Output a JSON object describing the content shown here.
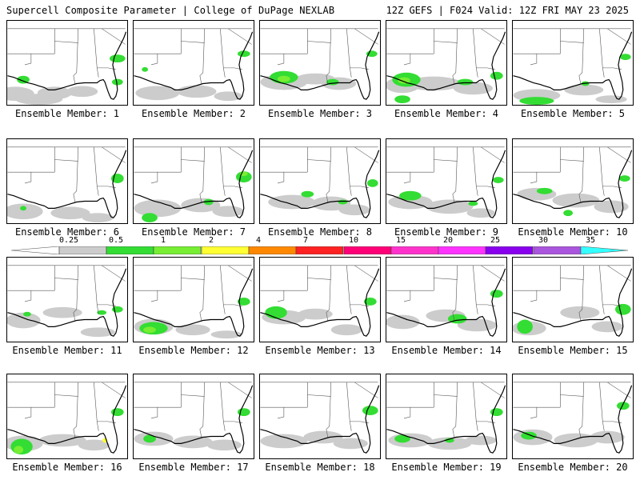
{
  "header": {
    "left_title": "Supercell Composite Parameter | College of DuPage NEXLAB",
    "right_title": "12Z GEFS | F024 Valid: 12Z FRI MAY 23 2025"
  },
  "panels": [
    {
      "label": "Ensemble Member: 1"
    },
    {
      "label": "Ensemble Member: 2"
    },
    {
      "label": "Ensemble Member: 3"
    },
    {
      "label": "Ensemble Member: 4"
    },
    {
      "label": "Ensemble Member: 5"
    },
    {
      "label": "Ensemble Member: 6"
    },
    {
      "label": "Ensemble Member: 7"
    },
    {
      "label": "Ensemble Member: 8"
    },
    {
      "label": "Ensemble Member: 9"
    },
    {
      "label": "Ensemble Member: 10"
    },
    {
      "label": "Ensemble Member: 11"
    },
    {
      "label": "Ensemble Member: 12"
    },
    {
      "label": "Ensemble Member: 13"
    },
    {
      "label": "Ensemble Member: 14"
    },
    {
      "label": "Ensemble Member: 15"
    },
    {
      "label": "Ensemble Member: 16"
    },
    {
      "label": "Ensemble Member: 17"
    },
    {
      "label": "Ensemble Member: 18"
    },
    {
      "label": "Ensemble Member: 19"
    },
    {
      "label": "Ensemble Member: 20"
    }
  ],
  "colorbar": {
    "labels": [
      "0.25",
      "0.5",
      "1",
      "2",
      "4",
      "7",
      "10",
      "15",
      "20",
      "25",
      "30",
      "35"
    ],
    "colors": [
      "#cccccc",
      "#33dd33",
      "#77ee33",
      "#ffff33",
      "#ff8800",
      "#ff2222",
      "#ff0077",
      "#ff33cc",
      "#ff33ff",
      "#8800ee",
      "#aa55dd",
      "#33ffff"
    ]
  }
}
